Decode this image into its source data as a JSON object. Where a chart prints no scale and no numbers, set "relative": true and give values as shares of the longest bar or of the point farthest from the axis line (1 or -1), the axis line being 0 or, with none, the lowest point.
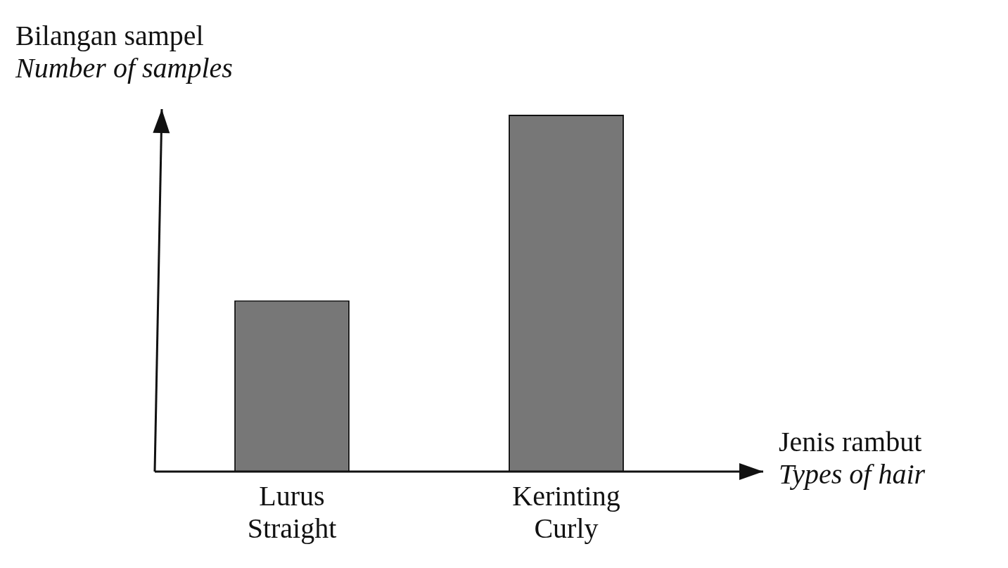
{
  "chart_data": {
    "type": "bar",
    "xlabel": "Jenis rambut\nTypes of hair",
    "ylabel": "Bilangan sampel\nNumber of samples",
    "categories": [
      "Lurus\nStraight",
      "Kerinting\nCurly"
    ],
    "values": [
      0.48,
      1
    ],
    "color": "#777777",
    "relative": true
  }
}
